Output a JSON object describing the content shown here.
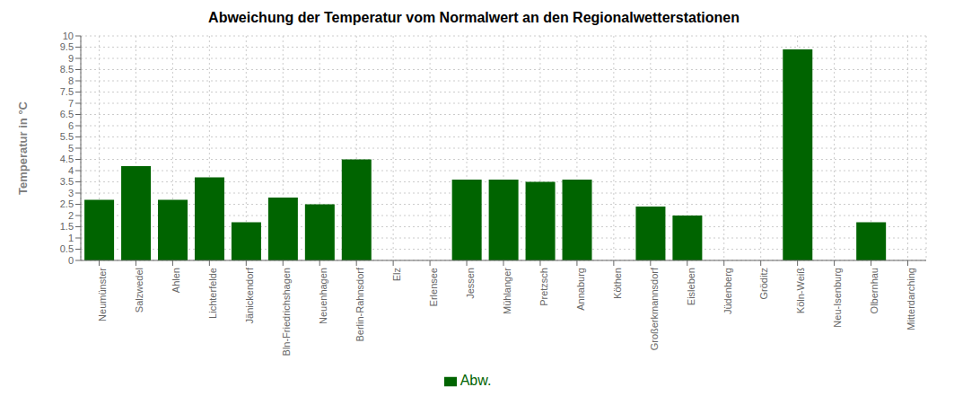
{
  "chart_data": {
    "type": "bar",
    "title": "Abweichung der Temperatur vom Normalwert an den Regionalwetterstationen",
    "y_label": "Temperatur in °C",
    "categories": [
      "Neumünster",
      "Salzwedel",
      "Ahlen",
      "Lichterfelde",
      "Jänickendorf",
      "Bln-Friedrichshagen",
      "Neuenhagen",
      "Berlin-Rahnsdorf",
      "Elz",
      "Erlensee",
      "Jessen",
      "Mühlanger",
      "Pretzsch",
      "Annaburg",
      "Köthen",
      "Großerkmannsdorf",
      "Eisleben",
      "Jüdenberg",
      "Gröditz",
      "Köln-Weiß",
      "Neu-Isenburg",
      "Olbernhau",
      "Mitterdarching"
    ],
    "series": [
      {
        "name": "Abw.",
        "color": "#006400",
        "values": [
          2.7,
          4.2,
          2.7,
          3.7,
          1.7,
          2.8,
          2.5,
          4.5,
          0.0,
          0.0,
          3.6,
          3.6,
          3.5,
          3.6,
          0.0,
          2.4,
          2.0,
          0.0,
          0.0,
          9.4,
          0.0,
          1.7,
          0.0
        ]
      }
    ],
    "ylim": [
      0,
      10
    ],
    "yticks": [
      0,
      0.5,
      1,
      1.5,
      2,
      2.5,
      3,
      3.5,
      4,
      4.5,
      5,
      5.5,
      6,
      6.5,
      7,
      7.5,
      8,
      8.5,
      9,
      9.5,
      10
    ],
    "grid": true,
    "legend": "bottom"
  }
}
